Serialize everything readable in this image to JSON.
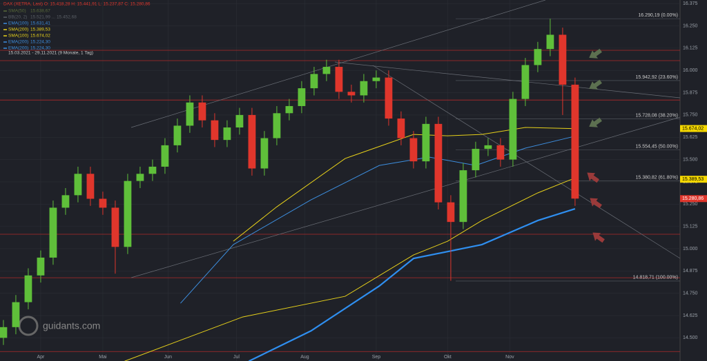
{
  "chart_data": {
    "type": "candlestick",
    "header": "DAX (XETRA, Last)  O: 15.418,28  H: 15.441,91  L: 15.237,87  C: 15.280,86",
    "range_text": "15.03.2021 - 29.11.2021   (9 Monate, 1 Tag)",
    "watermark": "guidants.com",
    "indicators": [
      {
        "name": "SMA(50)",
        "value": "15.638,67",
        "color": "#5a6b3a"
      },
      {
        "name": "BB(20, 2)",
        "value": "15.521,99 ... 15.452,68",
        "color": "#5a5f66"
      },
      {
        "name": "EMA(100)",
        "value": "15.631,41",
        "color": "#3d8fe0"
      },
      {
        "name": "SMA(200)",
        "value": "15.389,53",
        "color": "#e8d21a"
      },
      {
        "name": "SMA(100)",
        "value": "15.674,02",
        "color": "#e8d21a"
      },
      {
        "name": "EMA(200)",
        "value": "15.224,30",
        "color": "#3d8fe0"
      },
      {
        "name": "EMA(200)",
        "value": "15.224,30",
        "color": "#3d8fe0"
      }
    ],
    "x": [
      0,
      4,
      8,
      12,
      16,
      20,
      24,
      28,
      32,
      36,
      40,
      44,
      48,
      52,
      56,
      60,
      64,
      68,
      72,
      76,
      80,
      84,
      88,
      92,
      96,
      100,
      104,
      108,
      112,
      116,
      120,
      124,
      128,
      132,
      136,
      140,
      144,
      148,
      152,
      156,
      160,
      164,
      168,
      172,
      176,
      180,
      184
    ],
    "open": [
      14500,
      14560,
      14700,
      14850,
      14950,
      15230,
      15300,
      15420,
      15280,
      15230,
      15010,
      15380,
      15420,
      15460,
      15580,
      15690,
      15820,
      15720,
      15610,
      15680,
      15750,
      15450,
      15620,
      15760,
      15800,
      15900,
      15980,
      16020,
      15880,
      15860,
      15940,
      15960,
      15730,
      15620,
      15490,
      15700,
      15260,
      15150,
      15440,
      15560,
      15580,
      15500,
      15840,
      16030,
      16120,
      16200,
      15920
    ],
    "high": [
      14600,
      14740,
      14890,
      14990,
      15270,
      15340,
      15460,
      15460,
      15320,
      15270,
      15420,
      15460,
      15500,
      15620,
      15730,
      15860,
      15860,
      15760,
      15720,
      15790,
      15790,
      15660,
      15800,
      15840,
      15940,
      16020,
      16060,
      16060,
      15920,
      15980,
      16000,
      16000,
      15770,
      15660,
      15740,
      15740,
      15300,
      15480,
      15600,
      15620,
      15620,
      15880,
      16070,
      16160,
      16290,
      16240,
      15960
    ],
    "low": [
      14460,
      14520,
      14660,
      14810,
      14910,
      15190,
      15260,
      15240,
      15190,
      14860,
      14970,
      15340,
      15380,
      15420,
      15540,
      15650,
      15680,
      15570,
      15570,
      15640,
      15410,
      15410,
      15580,
      15720,
      15760,
      15860,
      15940,
      15840,
      15820,
      15820,
      15900,
      15690,
      15580,
      15450,
      15450,
      15220,
      14820,
      15110,
      15400,
      15520,
      15460,
      15460,
      15800,
      15990,
      16080,
      15750,
      15240
    ],
    "close": [
      14560,
      14700,
      14850,
      14950,
      15230,
      15300,
      15420,
      15280,
      15230,
      15010,
      15380,
      15420,
      15460,
      15580,
      15690,
      15820,
      15720,
      15610,
      15680,
      15750,
      15450,
      15620,
      15760,
      15800,
      15900,
      15980,
      16020,
      15880,
      15860,
      15940,
      15960,
      15730,
      15620,
      15490,
      15700,
      15260,
      15150,
      15440,
      15560,
      15580,
      15500,
      15840,
      16030,
      16120,
      16200,
      15920,
      15281
    ],
    "up_color": "#5fbf3a",
    "down_color": "#e0362c",
    "series": [
      {
        "name": "SMA(100)",
        "color": "#e8d21a",
        "width": 1,
        "x": [
          74,
          88,
          110,
          132,
          143,
          154,
          168,
          183
        ],
        "values": [
          15042,
          15235,
          15506,
          15641,
          15633,
          15641,
          15680,
          15674
        ]
      },
      {
        "name": "SMA(200)",
        "color": "#e8d21a",
        "width": 1,
        "x": [
          39,
          77,
          110,
          132,
          143,
          154,
          172,
          183
        ],
        "values": [
          14369,
          14617,
          14733,
          14965,
          15042,
          15158,
          15313,
          15390
        ]
      },
      {
        "name": "EMA(100)",
        "color": "#3d8fe0",
        "width": 1,
        "x": [
          57,
          74,
          99,
          121,
          137,
          152,
          168,
          184
        ],
        "values": [
          14694,
          15023,
          15274,
          15467,
          15514,
          15467,
          15564,
          15631
        ]
      },
      {
        "name": "EMA(200)",
        "color": "#2f8ff0",
        "width": 2.2,
        "x": [
          79,
          99,
          121,
          132,
          154,
          172,
          184
        ],
        "values": [
          14369,
          14539,
          14791,
          14945,
          15023,
          15158,
          15224
        ]
      }
    ],
    "levels": [
      16113,
      16055,
      15834,
      15081,
      14837,
      14423
    ],
    "fib": [
      {
        "value": 16290.19,
        "label": "16.290,19 (0.00%)"
      },
      {
        "value": 15942.92,
        "label": "15.942,92 (23.60%)"
      },
      {
        "value": 15728.08,
        "label": "15.728,08 (38.20%)"
      },
      {
        "value": 15554.45,
        "label": "15.554,45 (50.00%)"
      },
      {
        "value": 15380.82,
        "label": "15.380,82 (61.80%)"
      },
      {
        "value": 14818.71,
        "label": "14.818,71 (100.00%)"
      }
    ],
    "badges": [
      {
        "value": 15674.02,
        "label": "15.674,02",
        "color": "#f5d800"
      },
      {
        "value": 15389.53,
        "label": "15.389,53",
        "color": "#f5d800"
      },
      {
        "value": 15280.86,
        "label": "15.280,86",
        "color": "#e0362c"
      }
    ],
    "xlim": [
      -1.1,
      217.8
    ],
    "ylim": [
      14370,
      16395
    ],
    "xticks": [
      {
        "value": 12,
        "label": "Apr"
      },
      {
        "value": 32,
        "label": "Mai"
      },
      {
        "value": 53,
        "label": "Jun"
      },
      {
        "value": 75,
        "label": "Jul"
      },
      {
        "value": 97,
        "label": "Aug"
      },
      {
        "value": 120,
        "label": "Sep"
      },
      {
        "value": 143,
        "label": "Okt"
      },
      {
        "value": 163,
        "label": "Nov"
      }
    ],
    "yticks": [
      {
        "value": 14500,
        "label": "14.500"
      },
      {
        "value": 14625,
        "label": "14.625"
      },
      {
        "value": 14750,
        "label": "14.750"
      },
      {
        "value": 14875,
        "label": "14.875"
      },
      {
        "value": 15000,
        "label": "15.000"
      },
      {
        "value": 15125,
        "label": "15.125"
      },
      {
        "value": 15250,
        "label": "15.250"
      },
      {
        "value": 15375,
        "label": "15.375"
      },
      {
        "value": 15500,
        "label": "15.500"
      },
      {
        "value": 15625,
        "label": "15.625"
      },
      {
        "value": 15750,
        "label": "15.750"
      },
      {
        "value": 15875,
        "label": "15.875"
      },
      {
        "value": 16000,
        "label": "16.000"
      },
      {
        "value": 16125,
        "label": "16.125"
      },
      {
        "value": 16250,
        "label": "16.250"
      },
      {
        "value": 16375,
        "label": "16.375"
      }
    ],
    "grid": true
  }
}
